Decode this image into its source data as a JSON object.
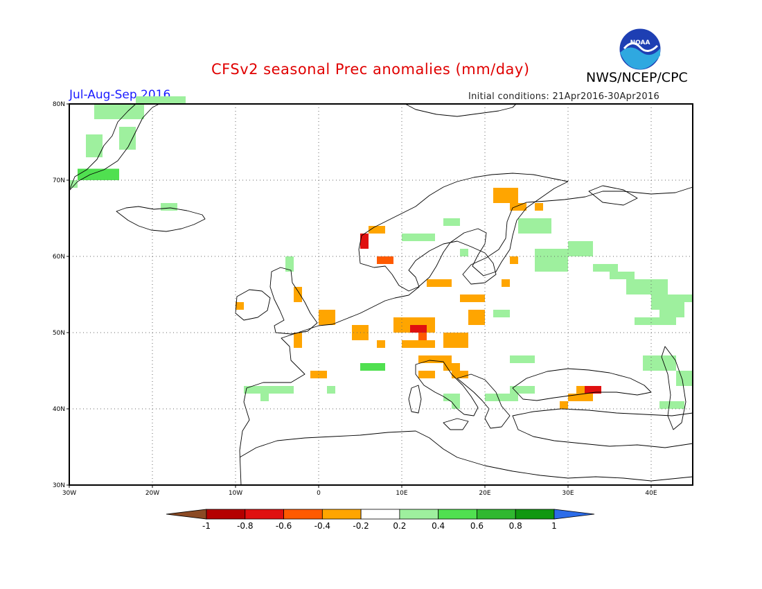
{
  "header": {
    "title": "CFSv2 seasonal Prec anomalies (mm/day)",
    "agency": "NWS/NCEP/CPC",
    "season": "Jul-Aug-Sep 2016",
    "initial_conditions": "Initial conditions: 21Apr2016-30Apr2016",
    "logo_text": "NOAA"
  },
  "map": {
    "lon_range": [
      -30,
      45
    ],
    "lat_range": [
      30,
      80
    ],
    "x_ticks": [
      "30W",
      "20W",
      "10W",
      "0",
      "10E",
      "20E",
      "30E",
      "40E"
    ],
    "y_ticks": [
      "30N",
      "40N",
      "50N",
      "60N",
      "70N",
      "80N"
    ],
    "grid": true
  },
  "legend": {
    "labels": [
      "-1",
      "-0.8",
      "-0.6",
      "-0.4",
      "-0.2",
      "0.2",
      "0.4",
      "0.6",
      "0.8",
      "1"
    ],
    "colors": [
      "#8b4a24",
      "#b40000",
      "#e01010",
      "#ff5a00",
      "#ffa500",
      "#ffffff",
      "#9ef09e",
      "#50e050",
      "#30b830",
      "#109810",
      "#2c6ce8"
    ]
  },
  "anomalies": [
    {
      "lon": -28,
      "lat": 73,
      "w": 2,
      "h": 3,
      "level": 0.3
    },
    {
      "lon": -27,
      "lat": 78,
      "w": 6,
      "h": 2,
      "level": 0.3
    },
    {
      "lon": -22,
      "lat": 80,
      "w": 6,
      "h": 1,
      "level": 0.3
    },
    {
      "lon": -29,
      "lat": 70,
      "w": 5,
      "h": 1.5,
      "level": 0.5
    },
    {
      "lon": -30,
      "lat": 69,
      "w": 1,
      "h": 1,
      "level": 0.3
    },
    {
      "lon": -24,
      "lat": 74,
      "w": 2,
      "h": 3,
      "level": 0.3
    },
    {
      "lon": -19,
      "lat": 66,
      "w": 2,
      "h": 1,
      "level": 0.3
    },
    {
      "lon": -4,
      "lat": 58,
      "w": 1,
      "h": 2,
      "level": 0.3
    },
    {
      "lon": -3,
      "lat": 54,
      "w": 1,
      "h": 2,
      "level": -0.3
    },
    {
      "lon": -10,
      "lat": 53,
      "w": 1,
      "h": 1,
      "level": -0.3
    },
    {
      "lon": 0,
      "lat": 51,
      "w": 2,
      "h": 2,
      "level": -0.3
    },
    {
      "lon": -3,
      "lat": 48,
      "w": 1,
      "h": 2,
      "level": -0.3
    },
    {
      "lon": -1,
      "lat": 44,
      "w": 2,
      "h": 1,
      "level": -0.3
    },
    {
      "lon": -9,
      "lat": 42,
      "w": 6,
      "h": 1,
      "level": 0.3
    },
    {
      "lon": -7,
      "lat": 41,
      "w": 1,
      "h": 1,
      "level": 0.3
    },
    {
      "lon": 1,
      "lat": 42,
      "w": 1,
      "h": 1,
      "level": 0.3
    },
    {
      "lon": 5,
      "lat": 45,
      "w": 3,
      "h": 1,
      "level": 0.5
    },
    {
      "lon": 4,
      "lat": 49,
      "w": 2,
      "h": 2,
      "level": -0.3
    },
    {
      "lon": 7,
      "lat": 48,
      "w": 1,
      "h": 1,
      "level": -0.3
    },
    {
      "lon": 10,
      "lat": 51,
      "w": 4,
      "h": 1,
      "level": -0.3
    },
    {
      "lon": 9,
      "lat": 50,
      "w": 5,
      "h": 2,
      "level": -0.3
    },
    {
      "lon": 11,
      "lat": 50,
      "w": 2,
      "h": 1,
      "level": -0.7
    },
    {
      "lon": 12,
      "lat": 49,
      "w": 1,
      "h": 1,
      "level": -0.5
    },
    {
      "lon": 10,
      "lat": 48,
      "w": 4,
      "h": 1,
      "level": -0.3
    },
    {
      "lon": 15,
      "lat": 48,
      "w": 3,
      "h": 2,
      "level": -0.3
    },
    {
      "lon": 12,
      "lat": 46,
      "w": 4,
      "h": 1,
      "level": -0.3
    },
    {
      "lon": 15,
      "lat": 45,
      "w": 2,
      "h": 1,
      "level": -0.3
    },
    {
      "lon": 12,
      "lat": 44,
      "w": 2,
      "h": 1,
      "level": -0.3
    },
    {
      "lon": 16,
      "lat": 44,
      "w": 2,
      "h": 1,
      "level": -0.3
    },
    {
      "lon": 18,
      "lat": 51,
      "w": 2,
      "h": 2,
      "level": -0.3
    },
    {
      "lon": 17,
      "lat": 54,
      "w": 3,
      "h": 1,
      "level": -0.3
    },
    {
      "lon": 8,
      "lat": 59,
      "w": 1,
      "h": 1,
      "level": -0.5
    },
    {
      "lon": 7,
      "lat": 59,
      "w": 1,
      "h": 1,
      "level": -0.5
    },
    {
      "lon": 5,
      "lat": 61,
      "w": 1,
      "h": 2,
      "level": -0.7
    },
    {
      "lon": 6,
      "lat": 63,
      "w": 2,
      "h": 1,
      "level": -0.3
    },
    {
      "lon": 13,
      "lat": 56,
      "w": 3,
      "h": 1,
      "level": -0.3
    },
    {
      "lon": 21,
      "lat": 67,
      "w": 3,
      "h": 2,
      "level": -0.3
    },
    {
      "lon": 23,
      "lat": 66,
      "w": 2,
      "h": 1,
      "level": -0.3
    },
    {
      "lon": 26,
      "lat": 66,
      "w": 1,
      "h": 1,
      "level": -0.3
    },
    {
      "lon": 22,
      "lat": 56,
      "w": 1,
      "h": 1,
      "level": -0.3
    },
    {
      "lon": 23,
      "lat": 59,
      "w": 1,
      "h": 1,
      "level": -0.3
    },
    {
      "lon": 30,
      "lat": 41,
      "w": 3,
      "h": 1,
      "level": -0.3
    },
    {
      "lon": 31,
      "lat": 42,
      "w": 3,
      "h": 1,
      "level": -0.3
    },
    {
      "lon": 32,
      "lat": 42,
      "w": 2,
      "h": 1,
      "level": -0.7
    },
    {
      "lon": 29,
      "lat": 40,
      "w": 1,
      "h": 1,
      "level": -0.3
    },
    {
      "lon": 24,
      "lat": 63,
      "w": 4,
      "h": 2,
      "level": 0.3
    },
    {
      "lon": 15,
      "lat": 64,
      "w": 2,
      "h": 1,
      "level": 0.3
    },
    {
      "lon": 10,
      "lat": 62,
      "w": 4,
      "h": 1,
      "level": 0.3
    },
    {
      "lon": 17,
      "lat": 60,
      "w": 1,
      "h": 1,
      "level": 0.3
    },
    {
      "lon": 26,
      "lat": 58,
      "w": 4,
      "h": 3,
      "level": 0.3
    },
    {
      "lon": 30,
      "lat": 60,
      "w": 3,
      "h": 2,
      "level": 0.3
    },
    {
      "lon": 33,
      "lat": 58,
      "w": 3,
      "h": 1,
      "level": 0.3
    },
    {
      "lon": 35,
      "lat": 57,
      "w": 3,
      "h": 1,
      "level": 0.3
    },
    {
      "lon": 37,
      "lat": 55,
      "w": 5,
      "h": 2,
      "level": 0.3
    },
    {
      "lon": 40,
      "lat": 53,
      "w": 3,
      "h": 2,
      "level": 0.3
    },
    {
      "lon": 41,
      "lat": 52,
      "w": 3,
      "h": 2,
      "level": 0.3
    },
    {
      "lon": 42,
      "lat": 54,
      "w": 3,
      "h": 1,
      "level": 0.3
    },
    {
      "lon": 38,
      "lat": 51,
      "w": 5,
      "h": 1,
      "level": 0.3
    },
    {
      "lon": 21,
      "lat": 52,
      "w": 2,
      "h": 1,
      "level": 0.3
    },
    {
      "lon": 23,
      "lat": 46,
      "w": 3,
      "h": 1,
      "level": 0.3
    },
    {
      "lon": 23,
      "lat": 42,
      "w": 3,
      "h": 1,
      "level": 0.3
    },
    {
      "lon": 20,
      "lat": 41,
      "w": 4,
      "h": 1,
      "level": 0.3
    },
    {
      "lon": 15,
      "lat": 41,
      "w": 2,
      "h": 1,
      "level": 0.3
    },
    {
      "lon": 16,
      "lat": 40,
      "w": 1,
      "h": 1,
      "level": 0.3
    },
    {
      "lon": 39,
      "lat": 45,
      "w": 4,
      "h": 2,
      "level": 0.3
    },
    {
      "lon": 43,
      "lat": 43,
      "w": 2,
      "h": 2,
      "level": 0.3
    },
    {
      "lon": 41,
      "lat": 40,
      "w": 3,
      "h": 1,
      "level": 0.3
    }
  ]
}
